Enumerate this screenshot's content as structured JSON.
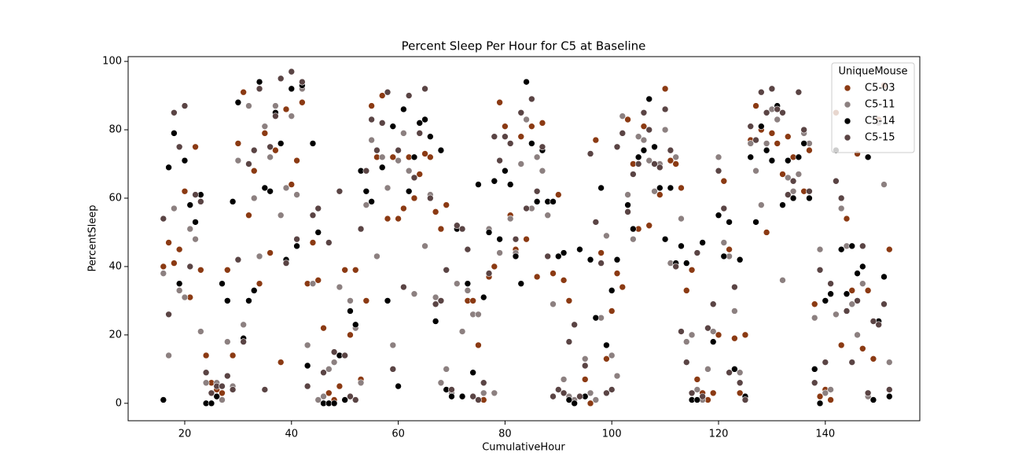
{
  "chart_data": {
    "type": "scatter",
    "title": "Percent Sleep Per Hour for C5 at Baseline",
    "x_label": "CumulativeHour",
    "y_label": "PercentSleep",
    "legend_title": "UniqueMouse",
    "legend_position": "upper right",
    "xlim": [
      9.4,
      157.7
    ],
    "ylim": [
      -5.1,
      101.4
    ],
    "xticks": [
      20,
      40,
      60,
      80,
      100,
      120,
      140
    ],
    "yticks": [
      0,
      20,
      40,
      60,
      80,
      100
    ],
    "grid": false,
    "x": [
      16,
      17,
      18,
      19,
      20,
      21,
      22,
      23,
      24,
      25,
      26,
      27,
      28,
      29,
      30,
      31,
      32,
      33,
      34,
      35,
      36,
      37,
      38,
      39,
      40,
      41,
      42,
      43,
      44,
      45,
      46,
      47,
      48,
      49,
      50,
      51,
      52,
      53,
      54,
      55,
      56,
      57,
      58,
      59,
      60,
      61,
      62,
      63,
      64,
      65,
      66,
      67,
      68,
      69,
      70,
      71,
      72,
      73,
      74,
      75,
      76,
      77,
      78,
      79,
      80,
      81,
      82,
      83,
      84,
      85,
      86,
      87,
      88,
      89,
      90,
      91,
      92,
      93,
      94,
      95,
      96,
      97,
      98,
      99,
      100,
      101,
      102,
      103,
      104,
      105,
      106,
      107,
      108,
      109,
      110,
      111,
      112,
      113,
      114,
      115,
      116,
      117,
      118,
      119,
      120,
      121,
      122,
      123,
      124,
      125,
      126,
      127,
      128,
      129,
      130,
      131,
      132,
      133,
      134,
      135,
      136,
      137,
      138,
      139,
      140,
      141,
      142,
      143,
      144,
      145,
      146,
      147,
      148,
      149,
      150,
      151,
      152
    ],
    "series": [
      {
        "name": "C5-03",
        "color": "#8b3a13",
        "values": [
          40,
          47,
          41,
          45,
          62,
          31,
          75,
          39,
          14,
          6,
          4,
          3,
          39,
          14,
          76,
          91,
          55,
          68,
          35,
          79,
          44,
          74,
          12,
          86,
          64,
          71,
          88,
          35,
          47,
          36,
          22,
          3,
          1,
          5,
          39,
          20,
          39,
          7,
          30,
          87,
          72,
          90,
          54,
          72,
          54,
          57,
          72,
          60,
          67,
          73,
          72,
          56,
          51,
          58,
          3,
          51,
          2,
          30,
          30,
          17,
          1,
          37,
          40,
          88,
          81,
          55,
          45,
          78,
          48,
          81,
          37,
          82,
          55,
          38,
          61,
          36,
          30,
          1,
          2,
          7,
          0,
          77,
          44,
          13,
          27,
          38,
          34,
          83,
          70,
          51,
          81,
          52,
          75,
          61,
          92,
          71,
          70,
          63,
          33,
          39,
          7,
          3,
          1,
          3,
          20,
          65,
          45,
          19,
          3,
          20,
          77,
          87,
          80,
          50,
          79,
          76,
          67,
          78,
          72,
          67,
          62,
          74,
          29,
          2,
          4,
          1,
          85,
          17,
          54,
          33,
          73,
          16,
          33,
          13,
          83,
          93,
          45
        ]
      },
      {
        "name": "C5-11",
        "color": "#8c8080",
        "values": [
          38,
          14,
          57,
          33,
          31,
          51,
          48,
          21,
          6,
          3,
          6,
          1,
          18,
          5,
          71,
          23,
          87,
          60,
          43,
          81,
          72,
          87,
          55,
          63,
          84,
          61,
          92,
          17,
          35,
          1,
          2,
          10,
          12,
          34,
          1,
          30,
          22,
          6,
          58,
          77,
          43,
          72,
          63,
          17,
          71,
          79,
          68,
          32,
          79,
          46,
          61,
          31,
          6,
          10,
          3,
          35,
          21,
          33,
          26,
          26,
          3,
          51,
          3,
          44,
          78,
          54,
          44,
          70,
          83,
          57,
          72,
          68,
          55,
          29,
          43,
          7,
          2,
          1,
          2,
          13,
          3,
          1,
          25,
          49,
          14,
          8,
          84,
          61,
          48,
          78,
          77,
          71,
          62,
          70,
          80,
          41,
          72,
          54,
          18,
          20,
          4,
          1,
          10,
          21,
          72,
          47,
          43,
          27,
          9,
          2,
          76,
          68,
          58,
          76,
          86,
          83,
          36,
          66,
          62,
          67,
          79,
          76,
          25,
          45,
          3,
          4,
          26,
          57,
          46,
          29,
          20,
          35,
          2,
          1,
          82,
          64,
          12
        ]
      },
      {
        "name": "C5-14",
        "color": "#000000",
        "values": [
          1,
          69,
          79,
          35,
          71,
          58,
          53,
          61,
          0,
          0,
          2,
          35,
          30,
          59,
          88,
          19,
          30,
          33,
          94,
          63,
          62,
          85,
          76,
          42,
          92,
          46,
          93,
          11,
          76,
          50,
          0,
          0,
          0,
          14,
          1,
          27,
          23,
          68,
          62,
          59,
          74,
          69,
          30,
          81,
          5,
          86,
          62,
          72,
          82,
          83,
          78,
          24,
          74,
          4,
          2,
          51,
          2,
          35,
          9,
          64,
          31,
          50,
          65,
          48,
          68,
          64,
          43,
          35,
          94,
          76,
          59,
          74,
          59,
          59,
          43,
          44,
          1,
          0,
          45,
          2,
          42,
          25,
          63,
          17,
          33,
          42,
          79,
          58,
          51,
          72,
          74,
          89,
          75,
          63,
          48,
          63,
          41,
          46,
          41,
          1,
          1,
          47,
          22,
          18,
          55,
          43,
          53,
          10,
          42,
          2,
          72,
          53,
          81,
          74,
          71,
          87,
          58,
          71,
          60,
          72,
          76,
          60,
          10,
          0,
          30,
          32,
          74,
          45,
          32,
          46,
          38,
          40,
          72,
          1,
          24,
          37,
          2
        ]
      },
      {
        "name": "C5-15",
        "color": "#5a4444",
        "values": [
          54,
          26,
          85,
          75,
          87,
          40,
          61,
          59,
          9,
          3,
          5,
          5,
          8,
          4,
          42,
          18,
          70,
          74,
          92,
          4,
          75,
          84,
          95,
          41,
          97,
          48,
          94,
          5,
          55,
          57,
          9,
          47,
          15,
          62,
          14,
          2,
          1,
          51,
          68,
          83,
          74,
          82,
          91,
          10,
          74,
          34,
          90,
          66,
          79,
          92,
          60,
          29,
          30,
          39,
          4,
          52,
          51,
          45,
          2,
          1,
          6,
          38,
          78,
          71,
          78,
          76,
          48,
          85,
          57,
          89,
          62,
          75,
          43,
          2,
          4,
          3,
          18,
          23,
          2,
          11,
          73,
          53,
          41,
          3,
          4,
          75,
          79,
          56,
          67,
          70,
          85,
          80,
          70,
          69,
          86,
          74,
          40,
          21,
          12,
          3,
          44,
          2,
          22,
          29,
          68,
          57,
          9,
          34,
          6,
          1,
          81,
          77,
          91,
          85,
          92,
          86,
          85,
          61,
          65,
          91,
          80,
          62,
          6,
          39,
          12,
          35,
          65,
          60,
          27,
          12,
          30,
          46,
          3,
          24,
          23,
          29,
          4
        ]
      }
    ]
  }
}
